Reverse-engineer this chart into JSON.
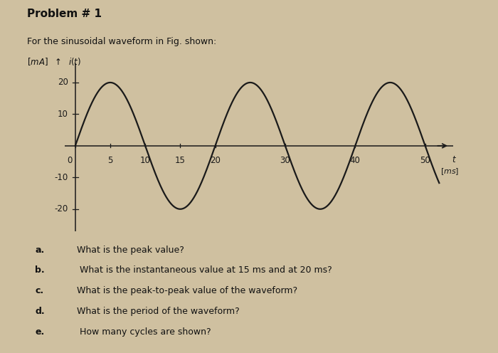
{
  "title": "Problem # 1",
  "subtitle": "For the sinusoidal waveform in Fig. shown:",
  "amplitude": 20,
  "period_ms": 20,
  "x_start": 0,
  "x_end": 52,
  "ylim": [
    -27,
    26
  ],
  "xlim": [
    -1.5,
    54
  ],
  "x_ticks": [
    0,
    5,
    10,
    15,
    20,
    30,
    40,
    50
  ],
  "y_ticks": [
    -20,
    -10,
    10,
    20
  ],
  "bg_color": "#cfc0a0",
  "line_color": "#1a1a1a",
  "questions": [
    "What is the peak value?",
    " What is the instantaneous value at 15 ms and at 20 ms?",
    "What is the peak-to-peak value of the waveform?",
    "What is the period of the waveform?",
    " How many cycles are shown?"
  ],
  "question_labels": [
    "a.",
    "b.",
    "c.",
    "d.",
    "e."
  ]
}
